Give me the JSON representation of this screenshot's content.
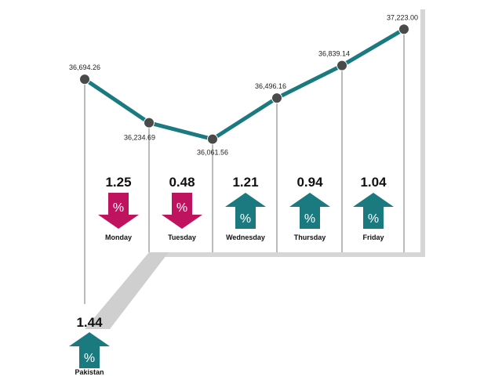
{
  "chart_data": {
    "type": "line",
    "x": [
      "Monday",
      "Tuesday",
      "Wednesday",
      "Thursday",
      "Friday"
    ],
    "points": [
      {
        "value": 36694.26,
        "label": "36,694.26"
      },
      {
        "value": 36234.69,
        "label": "36,234.69"
      },
      {
        "value": 36061.56,
        "label": "36,061.56"
      },
      {
        "value": 36496.16,
        "label": "36,496.16"
      },
      {
        "value": 36839.14,
        "label": "36,839.14"
      },
      {
        "value": 37223.0,
        "label": "37,223.00"
      }
    ],
    "daily_changes": [
      {
        "day": "Monday",
        "percent": "1.25",
        "direction": "down"
      },
      {
        "day": "Tuesday",
        "percent": "0.48",
        "direction": "down"
      },
      {
        "day": "Wednesday",
        "percent": "1.21",
        "direction": "up"
      },
      {
        "day": "Thursday",
        "percent": "0.94",
        "direction": "up"
      },
      {
        "day": "Friday",
        "percent": "1.04",
        "direction": "up"
      }
    ],
    "summary": {
      "name": "Pakistan",
      "percent": "1.44",
      "direction": "up"
    },
    "ylim": [
      36000,
      37300
    ],
    "percent_symbol": "%"
  },
  "colors": {
    "line": "#1a7a80",
    "up": "#1a7a80",
    "down": "#c0135f",
    "marker": "#4a4a4a",
    "panel": "#ffffff",
    "panel_shadow": "#d6d6d6",
    "gridline": "#777777"
  }
}
